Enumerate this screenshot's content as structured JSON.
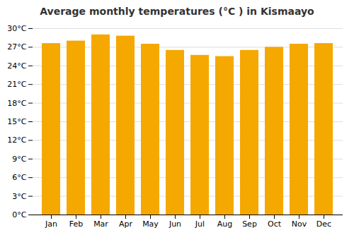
{
  "chart_data": {
    "type": "bar",
    "title": "Average monthly temperatures (°C ) in Kismaayo",
    "categories": [
      "Jan",
      "Feb",
      "Mar",
      "Apr",
      "May",
      "Jun",
      "Jul",
      "Aug",
      "Sep",
      "Oct",
      "Nov",
      "Dec"
    ],
    "values": [
      27.6,
      28.0,
      29.0,
      28.8,
      27.5,
      26.5,
      25.7,
      25.5,
      26.5,
      27.0,
      27.5,
      27.6
    ],
    "color": "#F5A800",
    "ylim": [
      0,
      30
    ],
    "yticks": [
      {
        "value": 0,
        "label": "0°C"
      },
      {
        "value": 3,
        "label": "3°C"
      },
      {
        "value": 6,
        "label": "6°C"
      },
      {
        "value": 9,
        "label": "9°C"
      },
      {
        "value": 12,
        "label": "12°C"
      },
      {
        "value": 15,
        "label": "15°C"
      },
      {
        "value": 18,
        "label": "18°C"
      },
      {
        "value": 21,
        "label": "21°C"
      },
      {
        "value": 24,
        "label": "24°C"
      },
      {
        "value": 27,
        "label": "27°C"
      },
      {
        "value": 30,
        "label": "30°C"
      }
    ],
    "grid": true
  }
}
